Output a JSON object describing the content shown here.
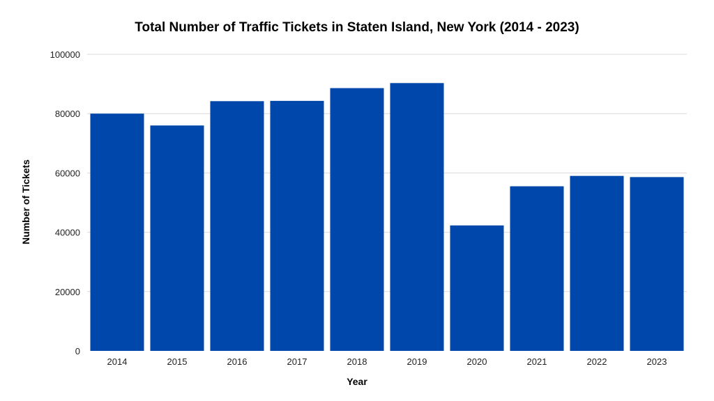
{
  "chart_data": {
    "type": "bar",
    "title": "Total Number of Traffic Tickets in Staten Island, New York (2014 - 2023)",
    "xlabel": "Year",
    "ylabel": "Number of Tickets",
    "categories": [
      "2014",
      "2015",
      "2016",
      "2017",
      "2018",
      "2019",
      "2020",
      "2021",
      "2022",
      "2023"
    ],
    "values": [
      80000,
      76000,
      84200,
      84300,
      88600,
      90300,
      42300,
      55500,
      59000,
      58600
    ],
    "ylim": [
      0,
      100000
    ],
    "yticks": [
      "0",
      "20000",
      "40000",
      "60000",
      "80000",
      "100000"
    ],
    "grid": true,
    "legend": "none",
    "colors": {
      "bar": "#0047AB"
    }
  }
}
